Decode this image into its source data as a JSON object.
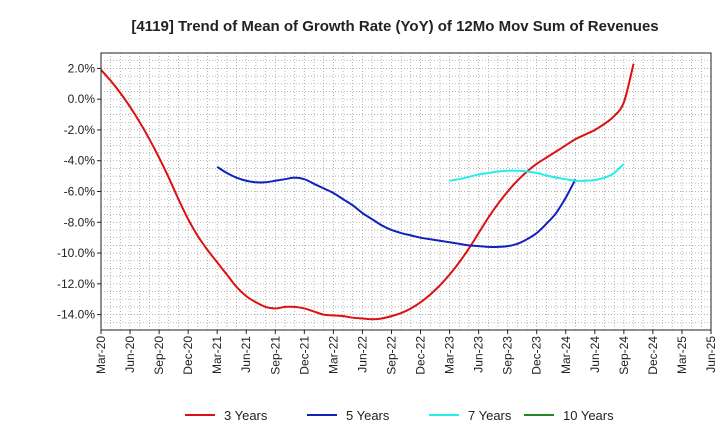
{
  "chart_data": {
    "type": "line",
    "title": "[4119]  Trend of Mean of Growth Rate (YoY) of 12Mo Mov Sum of Revenues",
    "xlabel": "",
    "ylabel": "",
    "ylim": [
      -15.0,
      3.0
    ],
    "y_ticks": [
      2.0,
      0.0,
      -2.0,
      -4.0,
      -6.0,
      -8.0,
      -10.0,
      -12.0,
      -14.0
    ],
    "y_tick_labels": [
      "2.0%",
      "0.0%",
      "-2.0%",
      "-4.0%",
      "-6.0%",
      "-8.0%",
      "-10.0%",
      "-12.0%",
      "-14.0%"
    ],
    "x_tick_labels": [
      "Mar-20",
      "Jun-20",
      "Sep-20",
      "Dec-20",
      "Mar-21",
      "Jun-21",
      "Sep-21",
      "Dec-21",
      "Mar-22",
      "Jun-22",
      "Sep-22",
      "Dec-22",
      "Mar-23",
      "Jun-23",
      "Sep-23",
      "Dec-23",
      "Mar-24",
      "Jun-24",
      "Sep-24",
      "Dec-24",
      "Mar-25",
      "Jun-25"
    ],
    "x_months": 63,
    "grid": true,
    "legend_position": "bottom",
    "series": [
      {
        "name": "3 Years",
        "color": "#dd1111",
        "start_month": 0,
        "values": [
          1.9,
          1.2,
          0.4,
          -0.5,
          -1.5,
          -2.6,
          -3.8,
          -5.1,
          -6.5,
          -7.8,
          -8.9,
          -9.8,
          -10.6,
          -11.4,
          -12.2,
          -12.8,
          -13.2,
          -13.5,
          -13.6,
          -13.5,
          -13.5,
          -13.6,
          -13.8,
          -14.0,
          -14.05,
          -14.1,
          -14.2,
          -14.25,
          -14.3,
          -14.25,
          -14.1,
          -13.9,
          -13.6,
          -13.2,
          -12.7,
          -12.1,
          -11.4,
          -10.6,
          -9.7,
          -8.7,
          -7.7,
          -6.8,
          -6.0,
          -5.3,
          -4.7,
          -4.2,
          -3.8,
          -3.4,
          -3.0,
          -2.6,
          -2.3,
          -2.0,
          -1.6,
          -1.1,
          -0.2,
          2.3
        ]
      },
      {
        "name": "5 Years",
        "color": "#1122bb",
        "start_month": 12,
        "values": [
          -4.4,
          -4.8,
          -5.1,
          -5.3,
          -5.4,
          -5.4,
          -5.3,
          -5.2,
          -5.1,
          -5.2,
          -5.5,
          -5.8,
          -6.1,
          -6.5,
          -6.9,
          -7.4,
          -7.8,
          -8.2,
          -8.5,
          -8.7,
          -8.85,
          -9.0,
          -9.1,
          -9.2,
          -9.3,
          -9.4,
          -9.5,
          -9.55,
          -9.6,
          -9.6,
          -9.55,
          -9.4,
          -9.1,
          -8.7,
          -8.1,
          -7.4,
          -6.4,
          -5.2
        ]
      },
      {
        "name": "7 Years",
        "color": "#22eeee",
        "start_month": 36,
        "values": [
          -5.3,
          -5.2,
          -5.05,
          -4.9,
          -4.8,
          -4.7,
          -4.65,
          -4.65,
          -4.7,
          -4.8,
          -4.95,
          -5.1,
          -5.2,
          -5.3,
          -5.3,
          -5.25,
          -5.1,
          -4.8,
          -4.2
        ]
      },
      {
        "name": "10 Years",
        "color": "#228822",
        "start_month": 0,
        "values": []
      }
    ]
  }
}
